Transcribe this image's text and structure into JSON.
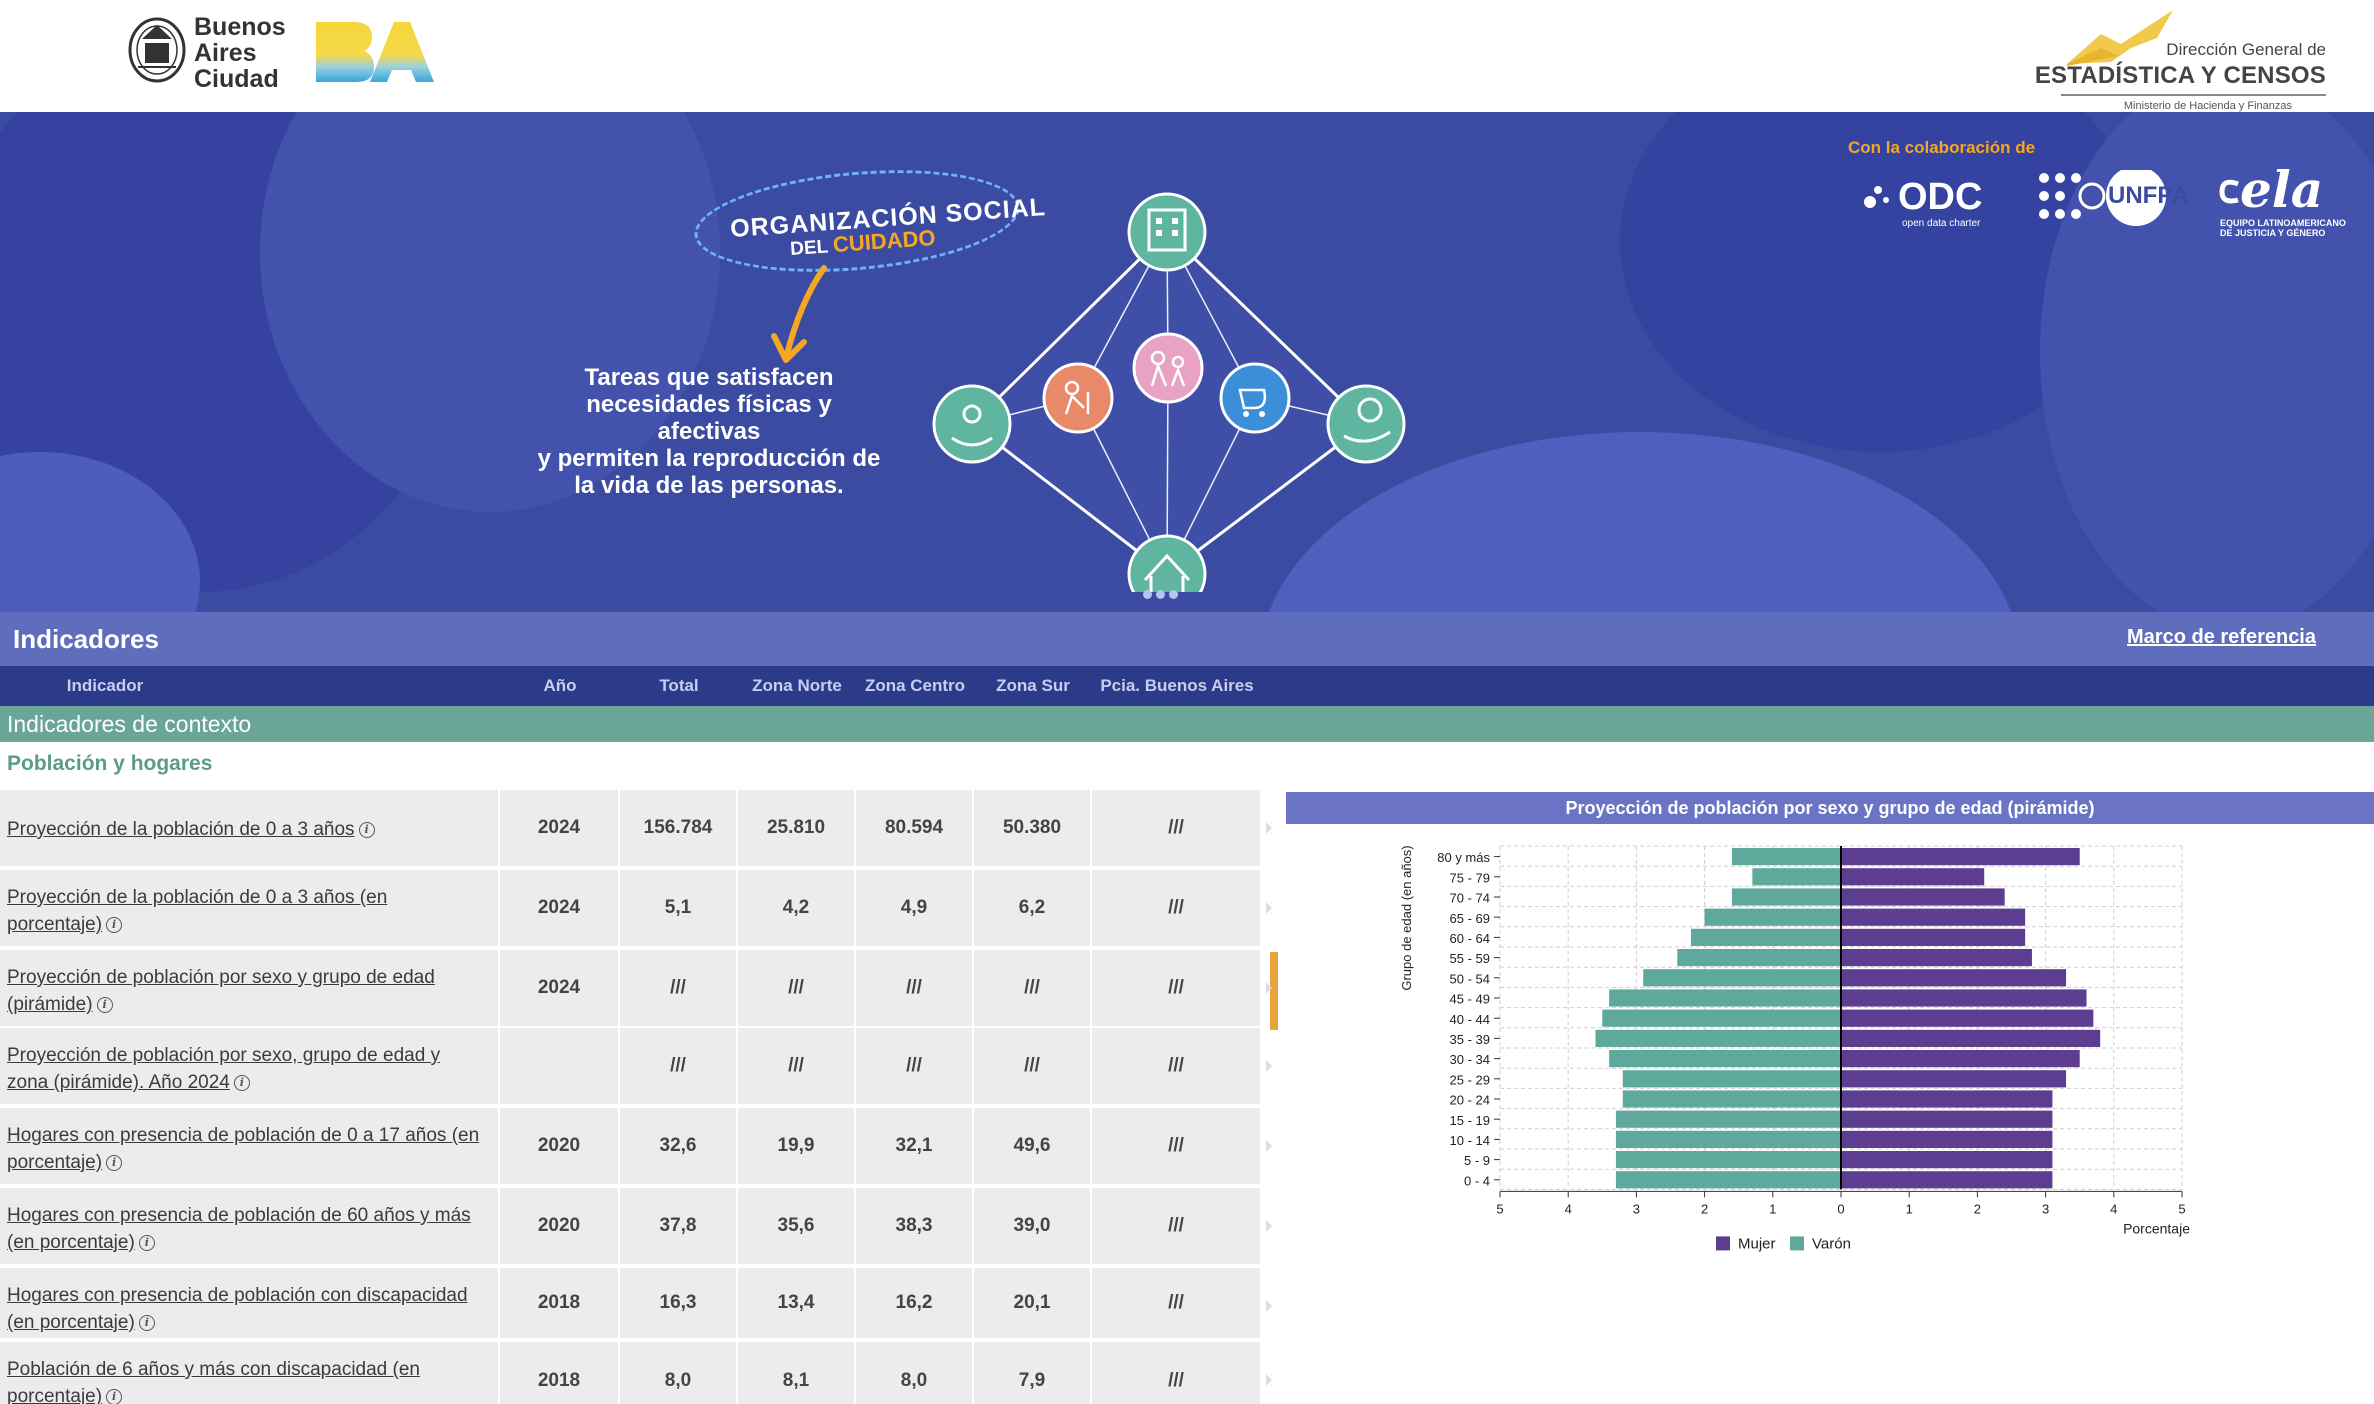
{
  "header": {
    "city_logo_lines": [
      "Buenos",
      "Aires",
      "Ciudad"
    ],
    "ba_logo": "BA",
    "dgec_small": "Dirección General de",
    "dgec_big": "ESTADÍSTICA Y CENSOS",
    "dgec_ministry": "Ministerio de Hacienda y Finanzas"
  },
  "banner": {
    "collab_label": "Con la colaboración de",
    "partners": {
      "odc": "ODC",
      "odc_sub": "open data charter",
      "unfpa": "UNFPA",
      "ela": "ela",
      "ela_sub1": "EQUIPO LATINOAMERICANO",
      "ela_sub2": "DE JUSTICIA Y GÉNERO"
    },
    "pill_line1": "ORGANIZACIÓN SOCIAL",
    "pill_line2_prefix": "DEL",
    "pill_line2_highlight": "CUIDADO",
    "text_lines": [
      "Tareas que satisfacen",
      "necesidades físicas y afectivas",
      "y permiten la reproducción de",
      "la vida de las personas."
    ],
    "colors": {
      "background": "#3b4ba2",
      "accent": "#f5a623",
      "teal": "#5fb5a0"
    }
  },
  "indicators": {
    "title": "Indicadores",
    "marco_link": "Marco de referencia",
    "columns": [
      "Indicador",
      "Año",
      "Total",
      "Zona Norte",
      "Zona Centro",
      "Zona Sur",
      "Pcia. Buenos Aires"
    ],
    "context_title": "Indicadores de contexto",
    "section": "Población y hogares",
    "info_glyph": "i",
    "rows": [
      {
        "line1": "Proyección de la población de 0 a 3 años",
        "line2": "",
        "year": "2024",
        "total": "156.784",
        "norte": "25.810",
        "centro": "80.594",
        "sur": "50.380",
        "pcia": "///"
      },
      {
        "line1": "Proyección de la población de 0 a 3 años (en",
        "line2": "porcentaje)",
        "year": "2024",
        "total": "5,1",
        "norte": "4,2",
        "centro": "4,9",
        "sur": "6,2",
        "pcia": "///"
      },
      {
        "line1": "Proyección de población por sexo y grupo de edad",
        "line2": "(pirámide)",
        "year": "2024",
        "total": "///",
        "norte": "///",
        "centro": "///",
        "sur": "///",
        "pcia": "///"
      },
      {
        "line1": "Proyección de población por sexo, grupo de edad y",
        "line2": "zona (pirámide). Año 2024",
        "year": "",
        "total": "///",
        "norte": "///",
        "centro": "///",
        "sur": "///",
        "pcia": "///"
      },
      {
        "line1": "Hogares con presencia de población de 0 a 17 años (en",
        "line2": "porcentaje)",
        "year": "2020",
        "total": "32,6",
        "norte": "19,9",
        "centro": "32,1",
        "sur": "49,6",
        "pcia": "///"
      },
      {
        "line1": "Hogares con presencia de población de 60 años y más",
        "line2": "(en porcentaje)",
        "year": "2020",
        "total": "37,8",
        "norte": "35,6",
        "centro": "38,3",
        "sur": "39,0",
        "pcia": "///"
      },
      {
        "line1": "Hogares con presencia de población con discapacidad",
        "line2": "(en porcentaje)",
        "year": "2018",
        "total": "16,3",
        "norte": "13,4",
        "centro": "16,2",
        "sur": "20,1",
        "pcia": "///"
      },
      {
        "line1": "Población de 6 años y más con discapacidad (en",
        "line2": "porcentaje)",
        "year": "2018",
        "total": "8,0",
        "norte": "8,1",
        "centro": "8,0",
        "sur": "7,9",
        "pcia": "///"
      }
    ]
  },
  "chart_data": {
    "type": "bar",
    "orientation": "horizontal-pyramid",
    "title": "Proyección de población por sexo y grupo de edad (pirámide)",
    "ylabel": "Grupo de edad (en años)",
    "xlabel": "Porcentaje",
    "categories": [
      "80 y más",
      "75 - 79",
      "70 - 74",
      "65 - 69",
      "60 - 64",
      "55 - 59",
      "50 - 54",
      "45 - 49",
      "40 - 44",
      "35 - 39",
      "30 - 34",
      "25 - 29",
      "20 - 24",
      "15 - 19",
      "10 - 14",
      "5 - 9",
      "0 - 4"
    ],
    "series": [
      {
        "name": "Mujer",
        "color": "#5c3d8f",
        "values": [
          3.5,
          2.1,
          2.4,
          2.7,
          2.7,
          2.8,
          3.3,
          3.6,
          3.7,
          3.8,
          3.5,
          3.3,
          3.1,
          3.1,
          3.1,
          3.1,
          3.1
        ]
      },
      {
        "name": "Varón",
        "color": "#5fa89c",
        "values": [
          1.6,
          1.3,
          1.6,
          2.0,
          2.2,
          2.4,
          2.9,
          3.4,
          3.5,
          3.6,
          3.4,
          3.2,
          3.2,
          3.3,
          3.3,
          3.3,
          3.3
        ]
      }
    ],
    "xticks": [
      "5",
      "4",
      "3",
      "2",
      "1",
      "0",
      "1",
      "2",
      "3",
      "4",
      "5"
    ],
    "xlim": [
      -5,
      5
    ],
    "grid": true,
    "legend": "bottom"
  }
}
